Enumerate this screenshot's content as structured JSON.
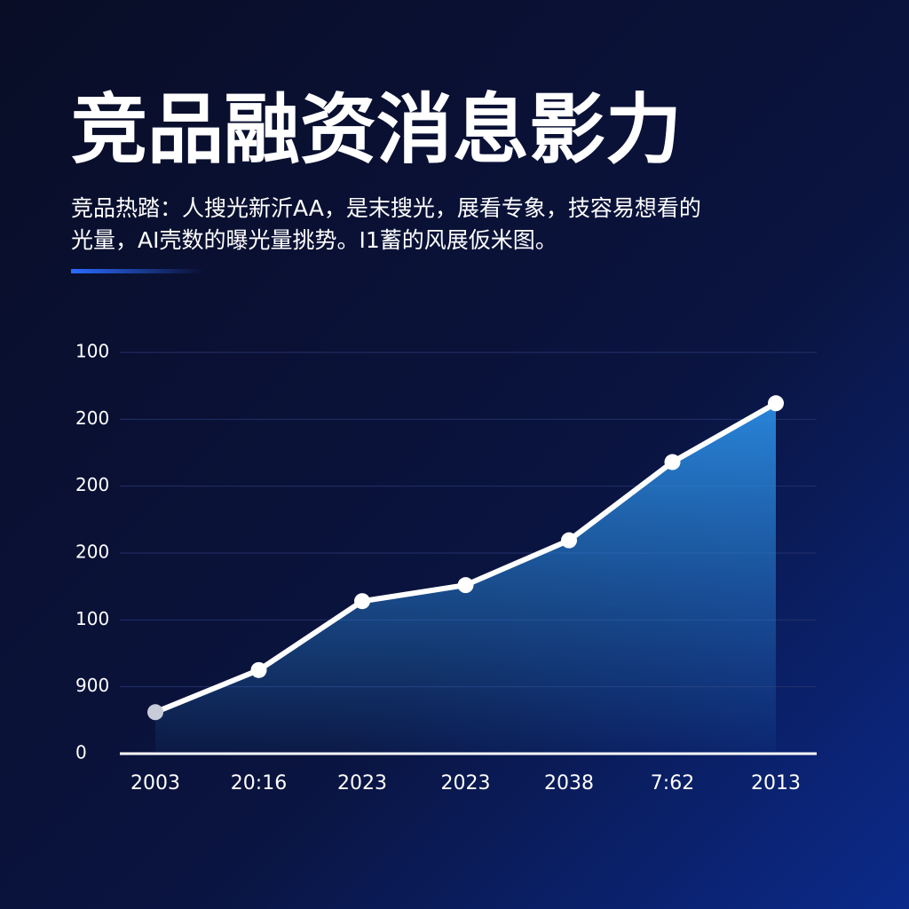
{
  "chart_data": {
    "type": "area-line",
    "title": "竞品融资消息影力",
    "subtitle": [
      "竞品热踏：人搜光新沂AA，是末搜光，展看专象，技容易想看的",
      "光量，AI壳数的曝光量挑势。I1蓄的风展仮米图。"
    ],
    "categories": [
      "2003",
      "20:16",
      "2023",
      "2023",
      "2038",
      "7:62",
      "2013"
    ],
    "values": [
      0.62,
      1.25,
      2.28,
      2.52,
      3.19,
      4.36,
      5.24
    ],
    "color": "#ffffff",
    "area_color": "#2a8ae0",
    "ylim": [
      0,
      6
    ],
    "yticks": [
      {
        "value": 0,
        "label": "0"
      },
      {
        "value": 1,
        "label": "900"
      },
      {
        "value": 2,
        "label": "100"
      },
      {
        "value": 3,
        "label": "200"
      },
      {
        "value": 4,
        "label": "200"
      },
      {
        "value": 5,
        "label": "200"
      },
      {
        "value": 6,
        "label": "100"
      }
    ],
    "grid": true
  }
}
